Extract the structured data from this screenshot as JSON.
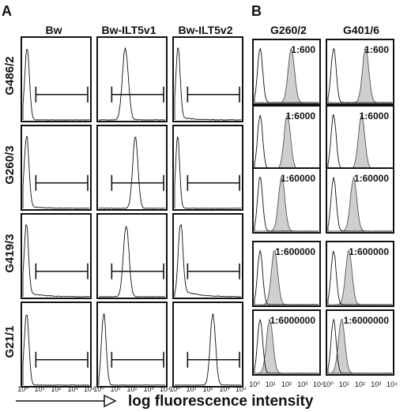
{
  "figure": {
    "panel_a_letter": "A",
    "panel_b_letter": "B",
    "x_axis_label": "log fluorescence intensity"
  },
  "chart_data": [
    {
      "panel": "A",
      "type": "histogram-grid",
      "column_headers": [
        "Bw",
        "Bw-ILT5v1",
        "Bw-ILT5v2"
      ],
      "row_labels": [
        "G486/2",
        "G260/3",
        "G419/3",
        "G21/1"
      ],
      "x_tick_labels": [
        "10⁰",
        "10¹",
        "10²",
        "10³",
        "10⁴"
      ],
      "x_scale": "log",
      "xlim": [
        1,
        10000
      ],
      "gate": {
        "from": 6,
        "to": 10000
      },
      "cells": [
        [
          {
            "peak_log10": 0.25,
            "width": 0.14,
            "tail": 0.0
          },
          {
            "peak_log10": 1.6,
            "width": 0.18,
            "tail": 0.0
          },
          {
            "peak_log10": 0.2,
            "width": 0.13,
            "tail": 0.04
          }
        ],
        [
          {
            "peak_log10": 0.22,
            "width": 0.14,
            "tail": 0.03
          },
          {
            "peak_log10": 2.2,
            "width": 0.16,
            "tail": 0.0
          },
          {
            "peak_log10": 0.18,
            "width": 0.12,
            "tail": 0.0
          }
        ],
        [
          {
            "peak_log10": 0.2,
            "width": 0.13,
            "tail": 0.06
          },
          {
            "peak_log10": 1.65,
            "width": 0.17,
            "tail": 0.0
          },
          {
            "peak_log10": 0.35,
            "width": 0.14,
            "tail": 0.1
          }
        ],
        [
          {
            "peak_log10": 0.22,
            "width": 0.14,
            "tail": 0.0
          },
          {
            "peak_log10": 0.3,
            "width": 0.14,
            "tail": 0.0
          },
          {
            "peak_log10": 2.3,
            "width": 0.16,
            "tail": 0.0
          }
        ]
      ]
    },
    {
      "panel": "B",
      "type": "histogram-grid-overlay",
      "column_headers": [
        "G260/2",
        "G401/6"
      ],
      "dilutions": [
        "1:600",
        "1:6000",
        "1:60000",
        "1:600000",
        "1:6000000"
      ],
      "x_tick_labels": [
        "10⁰",
        "10¹",
        "10²",
        "10³",
        "10⁴"
      ],
      "x_scale": "log",
      "xlim": [
        1,
        10000
      ],
      "control_peak_log10": 0.35,
      "stained_peak_log10": [
        [
          2.3,
          2.05,
          1.7,
          1.25,
          0.95
        ],
        [
          2.35,
          2.1,
          1.6,
          1.3,
          0.85
        ]
      ],
      "fill_color": "#cfcfcf"
    }
  ]
}
